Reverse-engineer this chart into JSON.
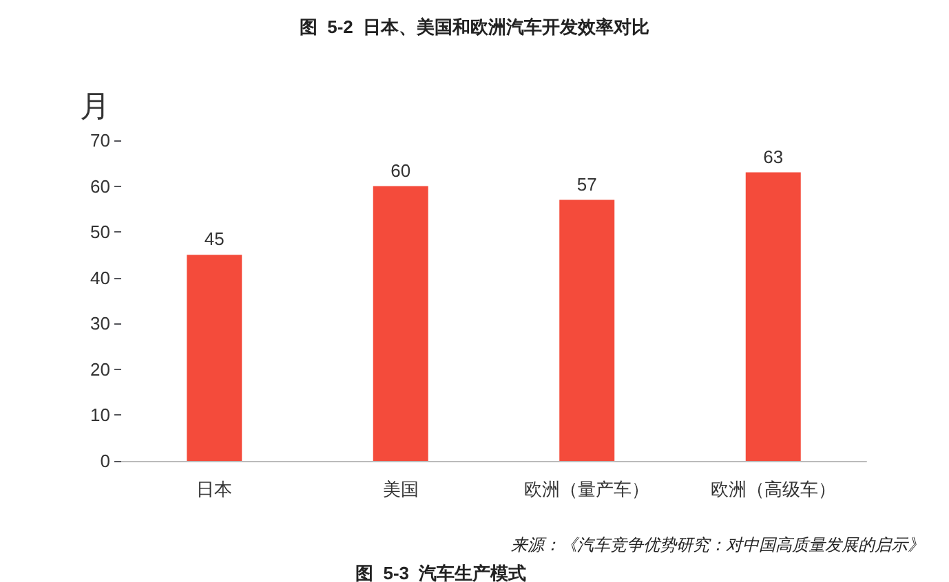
{
  "chart_data": {
    "type": "bar",
    "title": "图  5-2  日本、美国和欧洲汽车开发效率对比",
    "ylabel": "月",
    "categories": [
      "日本",
      "美国",
      "欧洲（量产车）",
      "欧洲（高级车）"
    ],
    "values": [
      45,
      60,
      57,
      63
    ],
    "color": "#f44b3b",
    "data_labels": true,
    "ylim": [
      0,
      70
    ],
    "yticks": [
      0,
      10,
      20,
      30,
      40,
      50,
      60,
      70
    ],
    "grid": false,
    "annotations": [
      "来源：《汽车竞争优势研究：对中国高质量发展的启示》",
      "图  5-3  汽车生产模式"
    ]
  }
}
